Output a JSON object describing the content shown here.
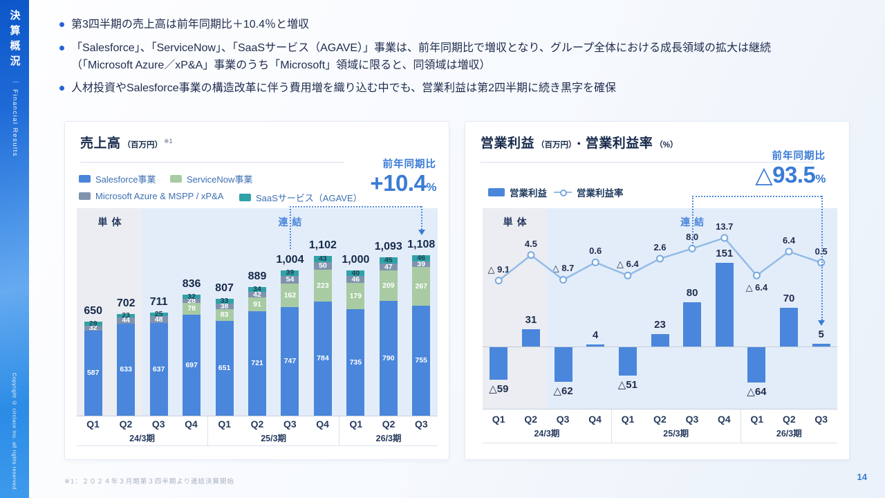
{
  "sidebar": {
    "title_jp": "決算概況",
    "subtitle": "｜ Financial Results",
    "copyright": "Copyright © circlace Inc. all rights reserved."
  },
  "bullets": [
    "第3四半期の売上高は前年同期比＋10.4％と増収",
    "「Salesforce」、「ServiceNow」、「SaaSサービス（AGAVE）」事業は、前年同期比で増収となり、グループ全体における成長領域の拡大は継続\n（「Microsoft Azure／xP&A」事業のうち「Microsoft」領域に限ると、同領域は増収）",
    "人材投資やSalesforce事業の構造改革に伴う費用増を織り込む中でも、営業利益は第2四半期に続き黒字を確保"
  ],
  "footnote": "※1：２０２４年３月期第３四半期より連結決算開始",
  "page_number": "14",
  "colors": {
    "accent_blue": "#3A7BD5",
    "navy": "#16294A",
    "bar_blue": "#4A86DB",
    "servicenow_green": "#A8CBA3",
    "microsoft_gray": "#8093AD",
    "saas_teal": "#30A2A8",
    "line_blue": "#92BBE7",
    "zone_standalone_bg": "#EBEDF2",
    "zone_consolidated_bg": "#E3EDF9"
  },
  "chart_data": [
    {
      "type": "bar",
      "stacked": true,
      "title": "売上高",
      "title_unit": "（百万円）",
      "title_note": "※1",
      "yoy_label": "前年同期比",
      "yoy_value": "+10.4",
      "yoy_unit": "%",
      "zones": [
        {
          "label": "単体",
          "span": 2,
          "bg": "#EBEDF2",
          "label_color": "#273A5E"
        },
        {
          "label": "連結",
          "span": 9,
          "bg": "#E3EDF9",
          "label_color": "#4A86DB"
        }
      ],
      "groups": [
        {
          "label": "24/3期",
          "quarters": [
            "Q1",
            "Q2",
            "Q3",
            "Q4"
          ]
        },
        {
          "label": "25/3期",
          "quarters": [
            "Q1",
            "Q2",
            "Q3",
            "Q4"
          ]
        },
        {
          "label": "26/3期",
          "quarters": [
            "Q1",
            "Q2",
            "Q3"
          ]
        }
      ],
      "categories": [
        "Q1",
        "Q2",
        "Q3",
        "Q4",
        "Q1",
        "Q2",
        "Q3",
        "Q4",
        "Q1",
        "Q2",
        "Q3"
      ],
      "series": [
        {
          "name": "Salesforce事業",
          "color": "#4A86DB",
          "label_color": "#FFFFFF",
          "values": [
            587,
            633,
            637,
            697,
            651,
            721,
            747,
            784,
            735,
            790,
            755
          ]
        },
        {
          "name": "ServiceNow事業",
          "color": "#A8CBA3",
          "label_color": "#FFFFFF",
          "values": [
            null,
            null,
            null,
            78,
            83,
            91,
            162,
            223,
            179,
            209,
            267
          ]
        },
        {
          "name": "Microsoft Azure & MSPP / xP&A",
          "color": "#8093AD",
          "label_color": "#FFFFFF",
          "values": [
            32,
            44,
            48,
            28,
            38,
            42,
            54,
            50,
            46,
            47,
            39
          ]
        },
        {
          "name": "SaaSサービス（AGAVE）",
          "color": "#30A2A8",
          "label_color": "#1D4153",
          "values": [
            29,
            23,
            25,
            32,
            33,
            34,
            39,
            43,
            40,
            45,
            46
          ]
        }
      ],
      "totals": [
        "650",
        "702",
        "711",
        "836",
        "807",
        "889",
        "1,004",
        "1,102",
        "1,000",
        "1,093",
        "1,108"
      ],
      "comparison": {
        "from_index": 6,
        "to_index": 10
      }
    },
    {
      "type": "bar+line",
      "title": "営業利益",
      "title_unit": "（百万円）",
      "title_sep": "・",
      "title2": "営業利益率",
      "title2_unit": "（%）",
      "yoy_label": "前年同期比",
      "yoy_value": "△93.5",
      "yoy_unit": "%",
      "zones": [
        {
          "label": "単体",
          "span": 2,
          "bg": "#EBEDF2",
          "label_color": "#273A5E"
        },
        {
          "label": "連結",
          "span": 9,
          "bg": "#E3EDF9",
          "label_color": "#4A86DB"
        }
      ],
      "groups": [
        {
          "label": "24/3期",
          "quarters": [
            "Q1",
            "Q2",
            "Q3",
            "Q4"
          ]
        },
        {
          "label": "25/3期",
          "quarters": [
            "Q1",
            "Q2",
            "Q3",
            "Q4"
          ]
        },
        {
          "label": "26/3期",
          "quarters": [
            "Q1",
            "Q2",
            "Q3"
          ]
        }
      ],
      "categories": [
        "Q1",
        "Q2",
        "Q3",
        "Q4",
        "Q1",
        "Q2",
        "Q3",
        "Q4",
        "Q1",
        "Q2",
        "Q3"
      ],
      "bars": {
        "name": "営業利益",
        "color": "#4A86DB",
        "values": [
          -59,
          31,
          -62,
          4,
          -51,
          23,
          80,
          151,
          -64,
          70,
          5
        ],
        "labels": [
          "△59",
          "31",
          "△62",
          "4",
          "△51",
          "23",
          "80",
          "151",
          "△64",
          "70",
          "5"
        ]
      },
      "line": {
        "name": "営業利益率",
        "color": "#92BBE7",
        "marker_color": "#78A9DE",
        "values": [
          -9.1,
          4.5,
          -8.7,
          0.6,
          -6.4,
          2.6,
          8.0,
          13.7,
          -6.4,
          6.4,
          0.5
        ],
        "labels": [
          "△ 9.1",
          "4.5",
          "△ 8.7",
          "0.6",
          "△ 6.4",
          "2.6",
          "8.0",
          "13.7",
          "△ 6.4",
          "6.4",
          "0.5"
        ]
      },
      "comparison": {
        "from_index": 6,
        "to_index": 10
      }
    }
  ]
}
